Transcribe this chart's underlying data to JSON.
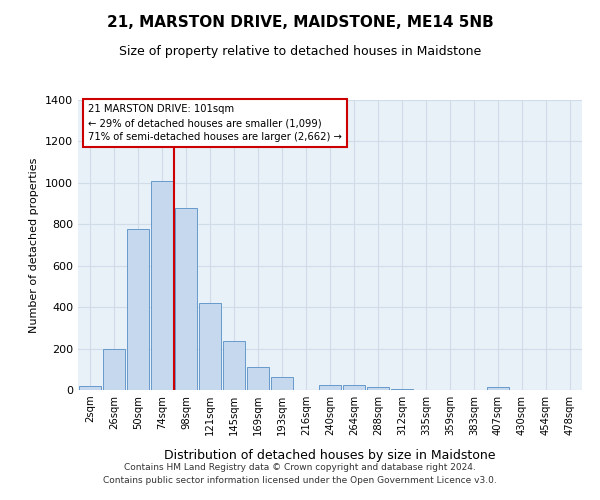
{
  "title": "21, MARSTON DRIVE, MAIDSTONE, ME14 5NB",
  "subtitle": "Size of property relative to detached houses in Maidstone",
  "xlabel": "Distribution of detached houses by size in Maidstone",
  "ylabel": "Number of detached properties",
  "bar_categories": [
    "2sqm",
    "26sqm",
    "50sqm",
    "74sqm",
    "98sqm",
    "121sqm",
    "145sqm",
    "169sqm",
    "193sqm",
    "216sqm",
    "240sqm",
    "264sqm",
    "288sqm",
    "312sqm",
    "335sqm",
    "359sqm",
    "383sqm",
    "407sqm",
    "430sqm",
    "454sqm",
    "478sqm"
  ],
  "bar_values": [
    20,
    200,
    775,
    1010,
    880,
    420,
    235,
    110,
    65,
    0,
    25,
    25,
    15,
    5,
    0,
    0,
    0,
    15,
    0,
    0,
    0
  ],
  "bar_color": "#c5d8ed",
  "bar_edge_color": "#6699cc",
  "vline_color": "#cc0000",
  "vline_x_index": 4,
  "annotation_title": "21 MARSTON DRIVE: 101sqm",
  "annotation_line1": "← 29% of detached houses are smaller (1,099)",
  "annotation_line2": "71% of semi-detached houses are larger (2,662) →",
  "annotation_box_facecolor": "#ffffff",
  "annotation_box_edgecolor": "#cc0000",
  "ylim": [
    0,
    1400
  ],
  "yticks": [
    0,
    200,
    400,
    600,
    800,
    1000,
    1200,
    1400
  ],
  "grid_color": "#d0dde8",
  "background_color": "#e8f0f8",
  "footer_line1": "Contains HM Land Registry data © Crown copyright and database right 2024.",
  "footer_line2": "Contains public sector information licensed under the Open Government Licence v3.0."
}
